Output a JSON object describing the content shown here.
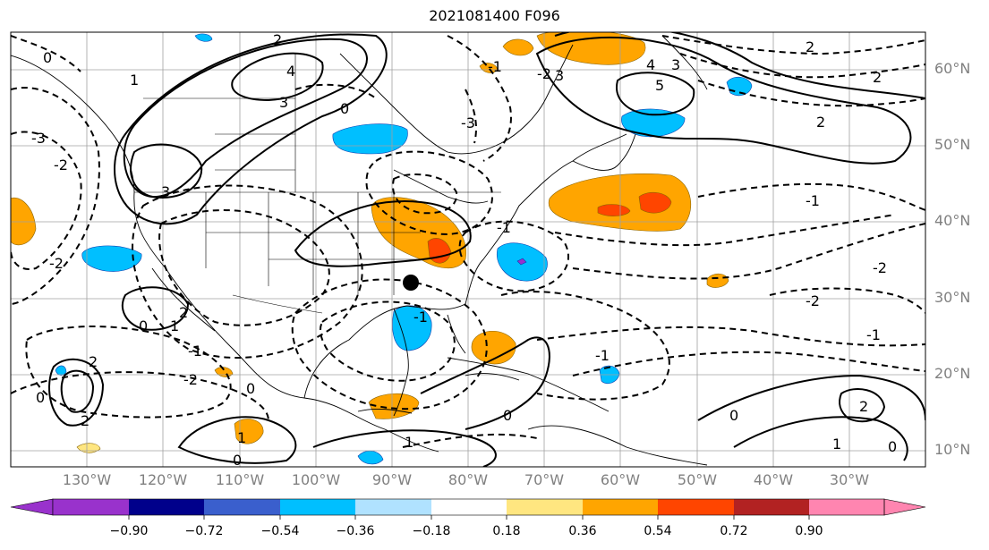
{
  "title": "2021081400 F096",
  "lat_labels": [
    "60°N",
    "50°N",
    "40°N",
    "30°N",
    "20°N",
    "10°N"
  ],
  "lon_labels": [
    "130°W",
    "120°W",
    "110°W",
    "100°W",
    "90°W",
    "80°W",
    "70°W",
    "60°W",
    "50°W",
    "40°W",
    "30°W"
  ],
  "colorbar": {
    "ticks": [
      "−0.90",
      "−0.72",
      "−0.54",
      "−0.36",
      "−0.18",
      "0.18",
      "0.36",
      "0.54",
      "0.72",
      "0.90"
    ],
    "colors": [
      "#9932cc",
      "#00008b",
      "#3a5fcd",
      "#00bfff",
      "#b0e2ff",
      "#ffffff",
      "#ffe680",
      "#ffa500",
      "#ff4500",
      "#b22222",
      "#ff85b0"
    ]
  },
  "contour_labels": [
    "0",
    "1",
    "2",
    "3",
    "4",
    "5",
    "-1",
    "-2",
    "-3"
  ]
}
